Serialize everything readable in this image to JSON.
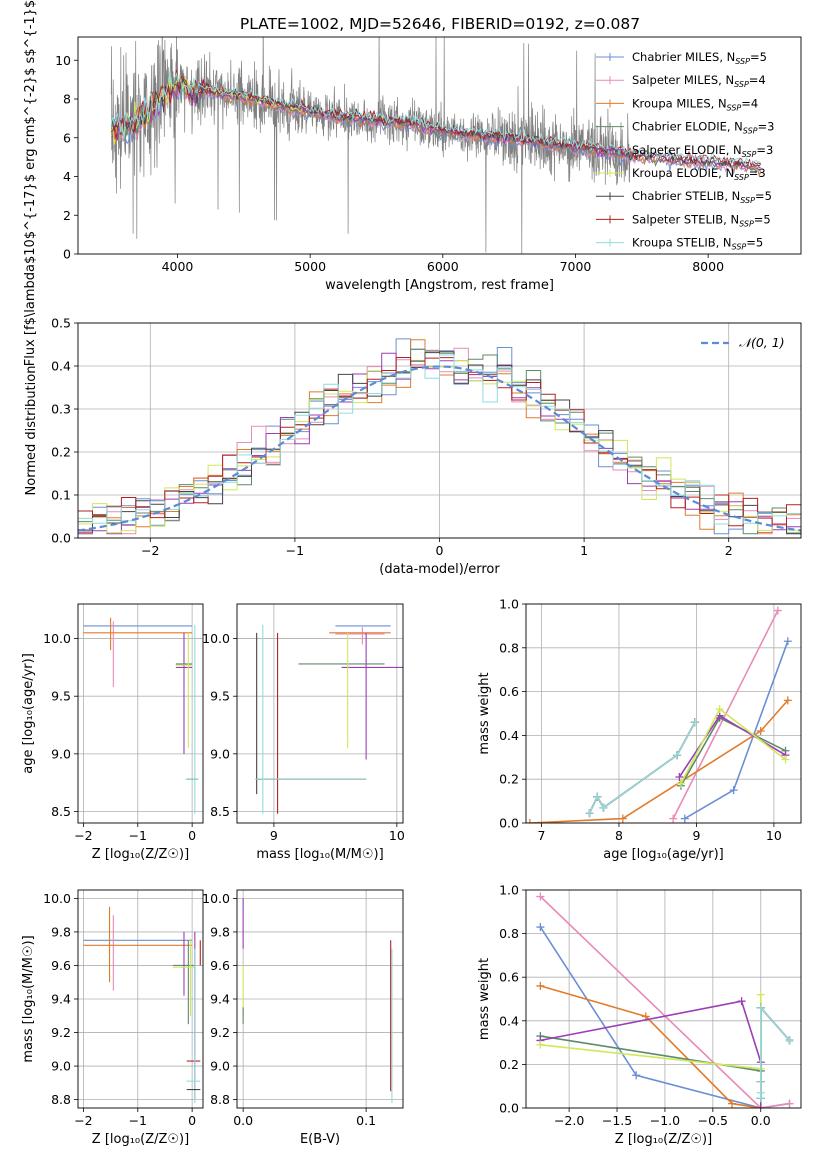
{
  "figure": {
    "title": "PLATE=1002, MJD=52646, FIBERID=0192, z=0.087"
  },
  "models": [
    {
      "name": "Chabrier MILES",
      "nssp": "5",
      "color": "#6a8fd6"
    },
    {
      "name": "Salpeter MILES",
      "nssp": "4",
      "color": "#e98ab9"
    },
    {
      "name": "Kroupa MILES",
      "nssp": "4",
      "color": "#e07b2b"
    },
    {
      "name": "Chabrier ELODIE",
      "nssp": "3",
      "color": "#5f8a6a"
    },
    {
      "name": "Salpeter ELODIE",
      "nssp": "3",
      "color": "#9b3fb5"
    },
    {
      "name": "Kroupa ELODIE",
      "nssp": "3",
      "color": "#cfe85a"
    },
    {
      "name": "Chabrier STELIB",
      "nssp": "5",
      "color": "#444444"
    },
    {
      "name": "Salpeter STELIB",
      "nssp": "5",
      "color": "#b22222"
    },
    {
      "name": "Kroupa STELIB",
      "nssp": "5",
      "color": "#8fdcdc"
    }
  ],
  "chart_data": [
    {
      "id": "spectrum",
      "type": "line",
      "xlabel": "wavelength [Angstrom, rest frame]",
      "ylabel": "Flux [f$\\lambda$10$^{-17}$ erg cm$^{-2}$ s$^{-1}$ A$^{-1}$]",
      "xlim": [
        3250,
        8700
      ],
      "ylim": [
        0,
        11.2
      ],
      "xticks": [
        4000,
        5000,
        6000,
        7000,
        8000
      ],
      "yticks": [
        0,
        2,
        4,
        6,
        8,
        10
      ],
      "grid": false,
      "legend": "top-right",
      "data_color": "#808080",
      "data_range": [
        3500,
        7420
      ],
      "model_continuum": {
        "x": [
          3500,
          3600,
          3700,
          3800,
          3900,
          4000,
          4100,
          4300,
          4500,
          4700,
          4900,
          5200,
          5500,
          5800,
          6000,
          6300,
          6600,
          6900,
          7200,
          7400,
          7700,
          8000,
          8400
        ],
        "y": [
          6.4,
          6.6,
          6.8,
          7.5,
          8.2,
          8.7,
          8.6,
          8.3,
          8.1,
          7.8,
          7.5,
          7.1,
          6.9,
          6.7,
          6.3,
          6.1,
          5.9,
          5.6,
          5.3,
          5.1,
          4.9,
          4.75,
          4.5
        ]
      }
    },
    {
      "id": "residuals",
      "type": "bar",
      "xlabel": "(data-model)/error",
      "ylabel": "Normed distribution",
      "xlim": [
        -2.5,
        2.5
      ],
      "ylim": [
        0,
        0.5
      ],
      "xticks": [
        -2,
        -1,
        0,
        1,
        2
      ],
      "yticks": [
        0.0,
        0.1,
        0.2,
        0.3,
        0.4,
        0.5
      ],
      "grid": true,
      "legend": "top-right",
      "legend_label": "𝒩(0, 1)",
      "gaussian_color": "#5b8bd6",
      "bins": 50
    },
    {
      "id": "age_vs_Z",
      "type": "scatter",
      "xlabel": "Z [log₁₀(Z/Z☉)]",
      "ylabel": "age  [log₁₀(age/yr)]",
      "xlim": [
        -2.1,
        0.2
      ],
      "ylim": [
        8.4,
        10.3
      ],
      "xticks": [
        -2,
        -1,
        0
      ],
      "yticks": [
        8.5,
        9.0,
        9.5,
        10.0
      ],
      "grid": true,
      "errorbars": [
        {
          "m": 0,
          "x": -1.0,
          "xe": [
            -2.0,
            0.0
          ],
          "y": 10.11,
          "ye": [
            10.11,
            10.11
          ]
        },
        {
          "m": 1,
          "x": -1.45,
          "xe": [
            -1.45,
            -1.45
          ],
          "y": 10.03,
          "ye": [
            9.58,
            10.15
          ]
        },
        {
          "m": 2,
          "x": -1.0,
          "xe": [
            -2.0,
            0.0
          ],
          "y": 10.05,
          "ye": [
            10.05,
            10.05
          ]
        },
        {
          "m": 2,
          "x": -1.5,
          "xe": [
            -1.5,
            -1.5
          ],
          "y": 10.05,
          "ye": [
            9.9,
            10.18
          ]
        },
        {
          "m": 3,
          "x": -0.15,
          "xe": [
            -0.3,
            0.0
          ],
          "y": 9.78,
          "ye": [
            9.78,
            9.78
          ]
        },
        {
          "m": 4,
          "x": -0.15,
          "xe": [
            -0.3,
            0.0
          ],
          "y": 9.75,
          "ye": [
            9.75,
            9.75
          ]
        },
        {
          "m": 4,
          "x": -0.15,
          "xe": [
            -0.15,
            -0.15
          ],
          "y": 9.75,
          "ye": [
            9.0,
            10.05
          ]
        },
        {
          "m": 5,
          "x": -0.07,
          "xe": [
            -0.07,
            -0.07
          ],
          "y": 9.75,
          "ye": [
            9.05,
            10.05
          ]
        },
        {
          "m": 5,
          "x": -0.15,
          "xe": [
            -0.3,
            0.0
          ],
          "y": 9.77,
          "ye": [
            9.77,
            9.77
          ]
        },
        {
          "m": 6,
          "x": 0.0,
          "xe": [
            -0.1,
            0.1
          ],
          "y": 8.78,
          "ye": [
            8.78,
            8.78
          ]
        },
        {
          "m": 8,
          "x": 0.05,
          "xe": [
            -0.12,
            0.12
          ],
          "y": 8.78,
          "ye": [
            8.78,
            8.78
          ]
        },
        {
          "m": 8,
          "x": 0.05,
          "xe": [
            0.05,
            0.05
          ],
          "y": 9.3,
          "ye": [
            8.48,
            10.12
          ]
        }
      ]
    },
    {
      "id": "age_vs_mass",
      "type": "scatter",
      "xlabel": "mass [log₁₀(M/M☉)]",
      "ylabel": "",
      "xlim": [
        8.7,
        10.05
      ],
      "ylim": [
        8.4,
        10.3
      ],
      "xticks": [
        9,
        10
      ],
      "yticks": [
        8.5,
        9.0,
        9.5,
        10.0
      ],
      "grid": true,
      "errorbars": [
        {
          "m": 0,
          "x": 9.72,
          "xe": [
            9.5,
            9.95
          ],
          "y": 10.11,
          "ye": [
            10.11,
            10.11
          ]
        },
        {
          "m": 1,
          "x": 9.72,
          "xe": [
            9.5,
            9.9
          ],
          "y": 10.04,
          "ye": [
            9.95,
            10.1
          ]
        },
        {
          "m": 2,
          "x": 9.7,
          "xe": [
            9.45,
            9.95
          ],
          "y": 10.05,
          "ye": [
            10.05,
            10.05
          ]
        },
        {
          "m": 3,
          "x": 9.55,
          "xe": [
            9.2,
            9.9
          ],
          "y": 9.78,
          "ye": [
            9.78,
            9.78
          ]
        },
        {
          "m": 4,
          "x": 9.75,
          "xe": [
            9.55,
            10.05
          ],
          "y": 9.75,
          "ye": [
            8.95,
            10.05
          ]
        },
        {
          "m": 5,
          "x": 9.6,
          "xe": [
            9.6,
            9.6
          ],
          "y": 9.75,
          "ye": [
            9.05,
            10.05
          ]
        },
        {
          "m": 6,
          "x": 8.86,
          "xe": [
            8.86,
            8.86
          ],
          "y": 9.3,
          "ye": [
            8.65,
            10.05
          ]
        },
        {
          "m": 7,
          "x": 9.03,
          "xe": [
            9.03,
            9.03
          ],
          "y": 9.3,
          "ye": [
            8.48,
            10.05
          ]
        },
        {
          "m": 7,
          "x": 9.3,
          "xe": [
            8.85,
            9.75
          ],
          "y": 8.78,
          "ye": [
            8.78,
            8.78
          ]
        },
        {
          "m": 8,
          "x": 8.91,
          "xe": [
            8.91,
            8.91
          ],
          "y": 9.3,
          "ye": [
            8.48,
            10.12
          ]
        },
        {
          "m": 8,
          "x": 9.3,
          "xe": [
            8.85,
            9.75
          ],
          "y": 8.78,
          "ye": [
            8.78,
            8.78
          ]
        }
      ]
    },
    {
      "id": "weight_vs_age",
      "type": "line",
      "xlabel": "age  [log₁₀(age/yr)]",
      "ylabel": "mass weight",
      "xlim": [
        6.8,
        10.35
      ],
      "ylim": [
        0.0,
        1.0
      ],
      "xticks": [
        7,
        8,
        9,
        10
      ],
      "yticks": [
        0.0,
        0.2,
        0.4,
        0.6,
        0.8,
        1.0
      ],
      "grid": true,
      "series": [
        {
          "m": 0,
          "x": [
            8.85,
            9.48,
            10.18
          ],
          "y": [
            0.02,
            0.15,
            0.83
          ]
        },
        {
          "m": 1,
          "x": [
            8.7,
            10.05
          ],
          "y": [
            0.02,
            0.97
          ]
        },
        {
          "m": 2,
          "x": [
            6.85,
            8.05,
            9.83,
            10.18
          ],
          "y": [
            0.0,
            0.02,
            0.42,
            0.56
          ]
        },
        {
          "m": 3,
          "x": [
            8.8,
            9.3,
            10.15
          ],
          "y": [
            0.17,
            0.48,
            0.33
          ]
        },
        {
          "m": 4,
          "x": [
            8.78,
            9.3,
            10.15
          ],
          "y": [
            0.21,
            0.49,
            0.31
          ]
        },
        {
          "m": 5,
          "x": [
            8.8,
            9.3,
            10.15
          ],
          "y": [
            0.18,
            0.52,
            0.29
          ]
        },
        {
          "m": 6,
          "x": [
            7.62,
            7.72,
            7.8,
            8.75,
            8.98
          ],
          "y": [
            0.045,
            0.12,
            0.07,
            0.31,
            0.46
          ]
        },
        {
          "m": 7,
          "x": [
            7.62,
            7.72,
            7.8,
            8.75,
            8.98
          ],
          "y": [
            0.045,
            0.12,
            0.07,
            0.31,
            0.46
          ]
        },
        {
          "m": 8,
          "x": [
            7.62,
            7.72,
            7.8,
            8.75,
            8.98
          ],
          "y": [
            0.045,
            0.12,
            0.07,
            0.31,
            0.46
          ]
        }
      ]
    },
    {
      "id": "mass_vs_Z",
      "type": "scatter",
      "xlabel": "Z [log₁₀(Z/Z☉)]",
      "ylabel": "mass [log₁₀(M/M☉)]",
      "xlim": [
        -2.1,
        0.2
      ],
      "ylim": [
        8.75,
        10.05
      ],
      "xticks": [
        -2,
        -1,
        0
      ],
      "yticks": [
        8.8,
        9.0,
        9.2,
        9.4,
        9.6,
        9.8,
        10.0
      ],
      "grid": true,
      "errorbars": [
        {
          "m": 0,
          "x": -1.0,
          "xe": [
            -2.0,
            0.0
          ],
          "y": 9.75,
          "ye": [
            9.75,
            9.75
          ]
        },
        {
          "m": 1,
          "x": -1.45,
          "xe": [
            -1.45,
            -1.45
          ],
          "y": 9.72,
          "ye": [
            9.45,
            9.9
          ]
        },
        {
          "m": 2,
          "x": -1.0,
          "xe": [
            -2.0,
            0.0
          ],
          "y": 9.72,
          "ye": [
            9.72,
            9.72
          ]
        },
        {
          "m": 2,
          "x": -1.52,
          "xe": [
            -1.52,
            -1.52
          ],
          "y": 9.72,
          "ye": [
            9.5,
            9.95
          ]
        },
        {
          "m": 3,
          "x": -0.15,
          "xe": [
            -0.35,
            0.05
          ],
          "y": 9.6,
          "ye": [
            9.6,
            9.6
          ]
        },
        {
          "m": 3,
          "x": -0.07,
          "xe": [
            -0.07,
            -0.07
          ],
          "y": 9.6,
          "ye": [
            9.25,
            9.75
          ]
        },
        {
          "m": 4,
          "x": -0.15,
          "xe": [
            -0.15,
            -0.15
          ],
          "y": 9.7,
          "ye": [
            9.42,
            9.8
          ]
        },
        {
          "m": 5,
          "x": -0.15,
          "xe": [
            -0.35,
            0.05
          ],
          "y": 9.59,
          "ye": [
            9.59,
            9.59
          ]
        },
        {
          "m": 5,
          "x": -0.03,
          "xe": [
            -0.03,
            -0.03
          ],
          "y": 9.6,
          "ye": [
            9.3,
            9.76
          ]
        },
        {
          "m": 4,
          "x": 0.05,
          "xe": [
            0.05,
            0.05
          ],
          "y": 9.3,
          "ye": [
            8.8,
            9.8
          ]
        },
        {
          "m": 7,
          "x": 0.15,
          "xe": [
            0.15,
            0.15
          ],
          "y": 9.72,
          "ye": [
            9.6,
            9.75
          ]
        },
        {
          "m": 7,
          "x": 0.0,
          "xe": [
            -0.1,
            0.15
          ],
          "y": 9.03,
          "ye": [
            9.03,
            9.03
          ]
        },
        {
          "m": 8,
          "x": 0.0,
          "xe": [
            -0.1,
            0.15
          ],
          "y": 8.91,
          "ye": [
            8.91,
            8.91
          ]
        },
        {
          "m": 8,
          "x": 0.05,
          "xe": [
            0.05,
            0.05
          ],
          "y": 9.3,
          "ye": [
            8.78,
            9.7
          ]
        },
        {
          "m": 6,
          "x": 0.0,
          "xe": [
            -0.1,
            0.15
          ],
          "y": 8.86,
          "ye": [
            8.86,
            8.86
          ]
        }
      ]
    },
    {
      "id": "mass_vs_ebv",
      "type": "scatter",
      "xlabel": "E(B-V)",
      "ylabel": "",
      "xlim": [
        -0.005,
        0.13
      ],
      "ylim": [
        8.75,
        10.05
      ],
      "xticks": [
        0.0,
        0.1
      ],
      "yticks": [
        8.8,
        9.0,
        9.2,
        9.4,
        9.6,
        9.8,
        10.0
      ],
      "grid": true,
      "errorbars": [
        {
          "m": 4,
          "x": 0.0,
          "xe": [
            0.0,
            0.0
          ],
          "y": 9.85,
          "ye": [
            9.7,
            10.0
          ]
        },
        {
          "m": 5,
          "x": 0.0,
          "xe": [
            0.0,
            0.0
          ],
          "y": 9.4,
          "ye": [
            9.3,
            9.6
          ]
        },
        {
          "m": 3,
          "x": 0.0,
          "xe": [
            0.0,
            0.0
          ],
          "y": 9.3,
          "ye": [
            9.25,
            9.35
          ]
        },
        {
          "m": 7,
          "x": 0.12,
          "xe": [
            0.12,
            0.12
          ],
          "y": 9.3,
          "ye": [
            8.85,
            9.75
          ]
        },
        {
          "m": 8,
          "x": 0.121,
          "xe": [
            0.121,
            0.121
          ],
          "y": 9.3,
          "ye": [
            8.78,
            9.7
          ]
        }
      ]
    },
    {
      "id": "weight_vs_Z",
      "type": "line",
      "xlabel": "Z [log₁₀(Z/Z☉)]",
      "ylabel": "mass weight",
      "xlim": [
        -2.45,
        0.42
      ],
      "ylim": [
        0.0,
        1.0
      ],
      "xticks": [
        -2.0,
        -1.5,
        -1.0,
        -0.5,
        0.0
      ],
      "yticks": [
        0.0,
        0.2,
        0.4,
        0.6,
        0.8,
        1.0
      ],
      "grid": true,
      "series": [
        {
          "m": 0,
          "x": [
            -2.3,
            -1.3,
            0.0,
            0.3
          ],
          "y": [
            0.83,
            0.15,
            0.0,
            0.02
          ]
        },
        {
          "m": 1,
          "x": [
            -2.3,
            0.0,
            0.3
          ],
          "y": [
            0.97,
            0.0,
            0.02
          ]
        },
        {
          "m": 2,
          "x": [
            -2.3,
            -1.2,
            -0.3,
            0.0
          ],
          "y": [
            0.56,
            0.42,
            0.02,
            0.0
          ]
        },
        {
          "m": 3,
          "x": [
            -2.3,
            0.0
          ],
          "y": [
            0.33,
            0.17
          ]
        },
        {
          "m": 4,
          "x": [
            -2.3,
            -0.2,
            0.0,
            0.0
          ],
          "y": [
            0.31,
            0.49,
            0.21,
            0.0
          ]
        },
        {
          "m": 5,
          "x": [
            -2.3,
            0.0,
            0.0
          ],
          "y": [
            0.29,
            0.18,
            0.52
          ]
        },
        {
          "m": 6,
          "x": [
            0.0,
            0.0,
            0.0,
            0.3
          ],
          "y": [
            0.045,
            0.12,
            0.46,
            0.31
          ]
        },
        {
          "m": 7,
          "x": [
            0.0,
            0.0,
            0.0,
            0.3
          ],
          "y": [
            0.045,
            0.12,
            0.46,
            0.31
          ]
        },
        {
          "m": 8,
          "x": [
            0.0,
            0.0,
            0.0,
            0.0,
            0.3
          ],
          "y": [
            0.045,
            0.07,
            0.12,
            0.46,
            0.31
          ]
        }
      ]
    }
  ]
}
